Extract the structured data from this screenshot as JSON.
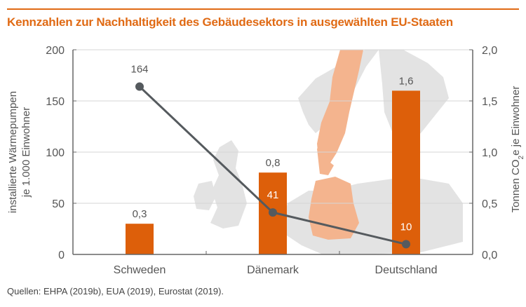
{
  "header": {
    "title": "Kennzahlen zur Nachhaltigkeit des Gebäudesektors in ausgewählten EU-Staaten"
  },
  "footer": {
    "source": "Quellen: EHPA (2019b), EUA (2019), Eurostat (2019)."
  },
  "colors": {
    "accent": "#e06a14",
    "bar": "#dd5f0a",
    "line": "#555a5e",
    "map_land": "#e3e3e3",
    "map_highlight": "#f4b48e"
  },
  "chart_data": {
    "type": "bar+line",
    "title": "Kennzahlen zur Nachhaltigkeit des Gebäudesektors in ausgewählten EU-Staaten",
    "categories": [
      "Schweden",
      "Dänemark",
      "Deutschland"
    ],
    "y_left": {
      "label_line1": "installierte Wärmepumpen",
      "label_line2": "je 1.000 Einwohner",
      "range": [
        0,
        200
      ],
      "ticks": [
        "0",
        "50",
        "100",
        "150",
        "200"
      ],
      "tick_values": [
        0,
        50,
        100,
        150,
        200
      ]
    },
    "y_right": {
      "label_pre": "Tonnen CO",
      "label_sub": "2",
      "label_post": "e je Einwohner",
      "range": [
        0,
        2.0
      ],
      "ticks": [
        "0,0",
        "0,5",
        "1,0",
        "1,5",
        "2,0"
      ],
      "tick_values": [
        0,
        0.5,
        1.0,
        1.5,
        2.0
      ]
    },
    "series": [
      {
        "name": "Tonnen CO2e je Einwohner",
        "type": "bar",
        "axis": "right",
        "values": [
          0.3,
          0.8,
          1.6
        ],
        "labels": [
          "0,3",
          "0,8",
          "1,6"
        ]
      },
      {
        "name": "installierte Wärmepumpen je 1.000 Einwohner",
        "type": "line",
        "axis": "left",
        "values": [
          164,
          41,
          10
        ],
        "labels": [
          "164",
          "41",
          "10"
        ]
      }
    ],
    "grid": true,
    "background": "Europakarte mit hervorgehobenen Ländern Schweden, Dänemark, Deutschland"
  }
}
